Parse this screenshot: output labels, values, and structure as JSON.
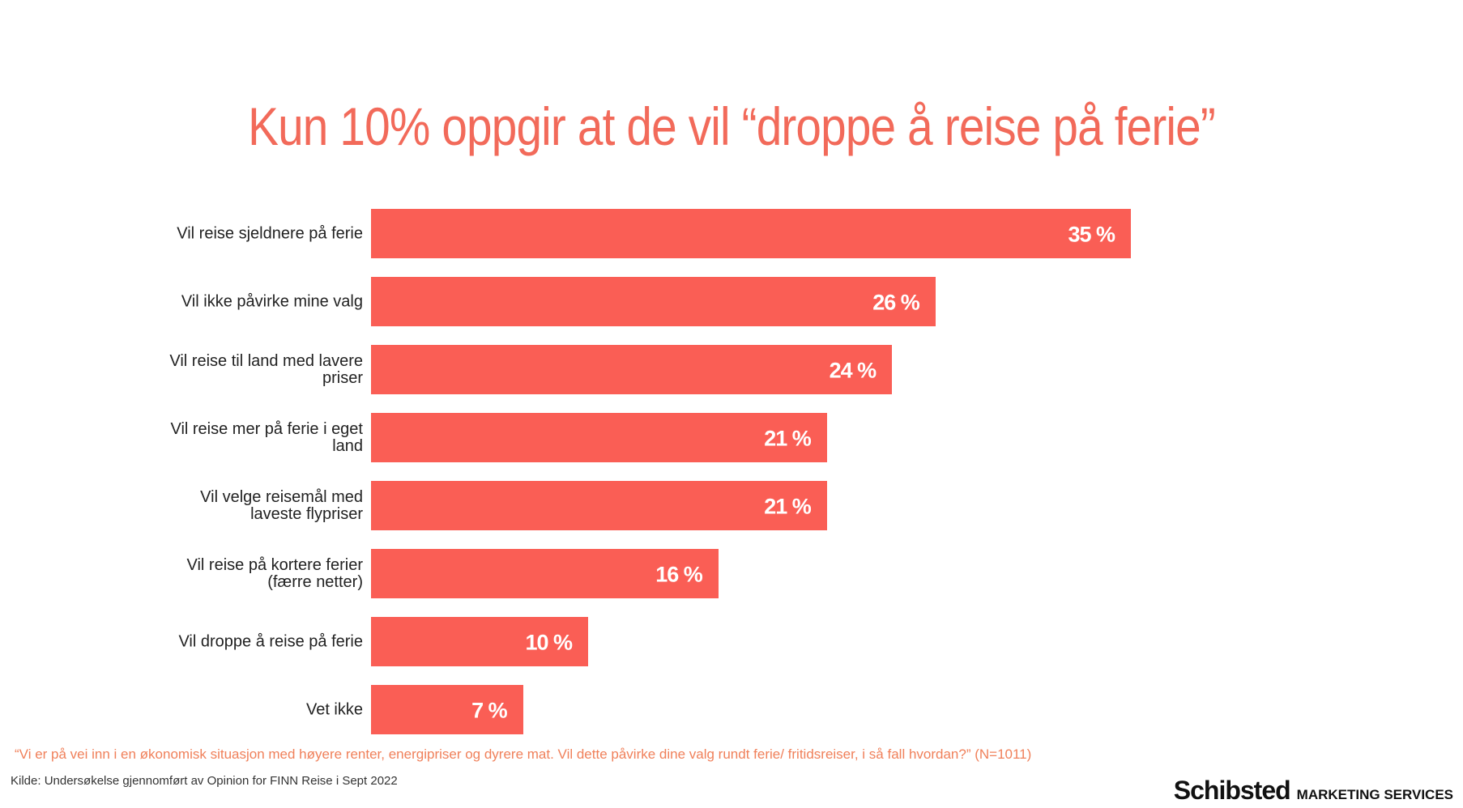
{
  "chart_data": {
    "type": "hbar",
    "title": "Kun 10% oppgir at de vil “droppe å reise på ferie”",
    "categories": [
      "Vil reise sjeldnere på ferie",
      "Vil ikke påvirke mine valg",
      "Vil reise til land med lavere priser",
      "Vil reise mer på ferie i eget land",
      "Vil velge reisemål med laveste flypriser",
      "Vil reise på kortere ferier (færre netter)",
      "Vil droppe å reise på ferie",
      "Vet ikke"
    ],
    "values": [
      35,
      26,
      24,
      21,
      21,
      16,
      10,
      7
    ],
    "value_labels": [
      "35 %",
      "26 %",
      "24 %",
      "21 %",
      "21 %",
      "16 %",
      "10 %",
      "7 %"
    ],
    "color": "#fa5e55",
    "question": "“Vi er på vei inn i en økonomisk situasjon med høyere renter, energipriser og dyrere mat. Vil dette påvirke dine valg rundt ferie/ fritidsreiser, i så fall hvordan?” (N=1011)",
    "source": "Kilde: Undersøkelse gjennomført av Opinion for FINN Reise i Sept 2022",
    "logo": "Schibsted",
    "logo_tagline": "MARKETING SERVICES"
  }
}
